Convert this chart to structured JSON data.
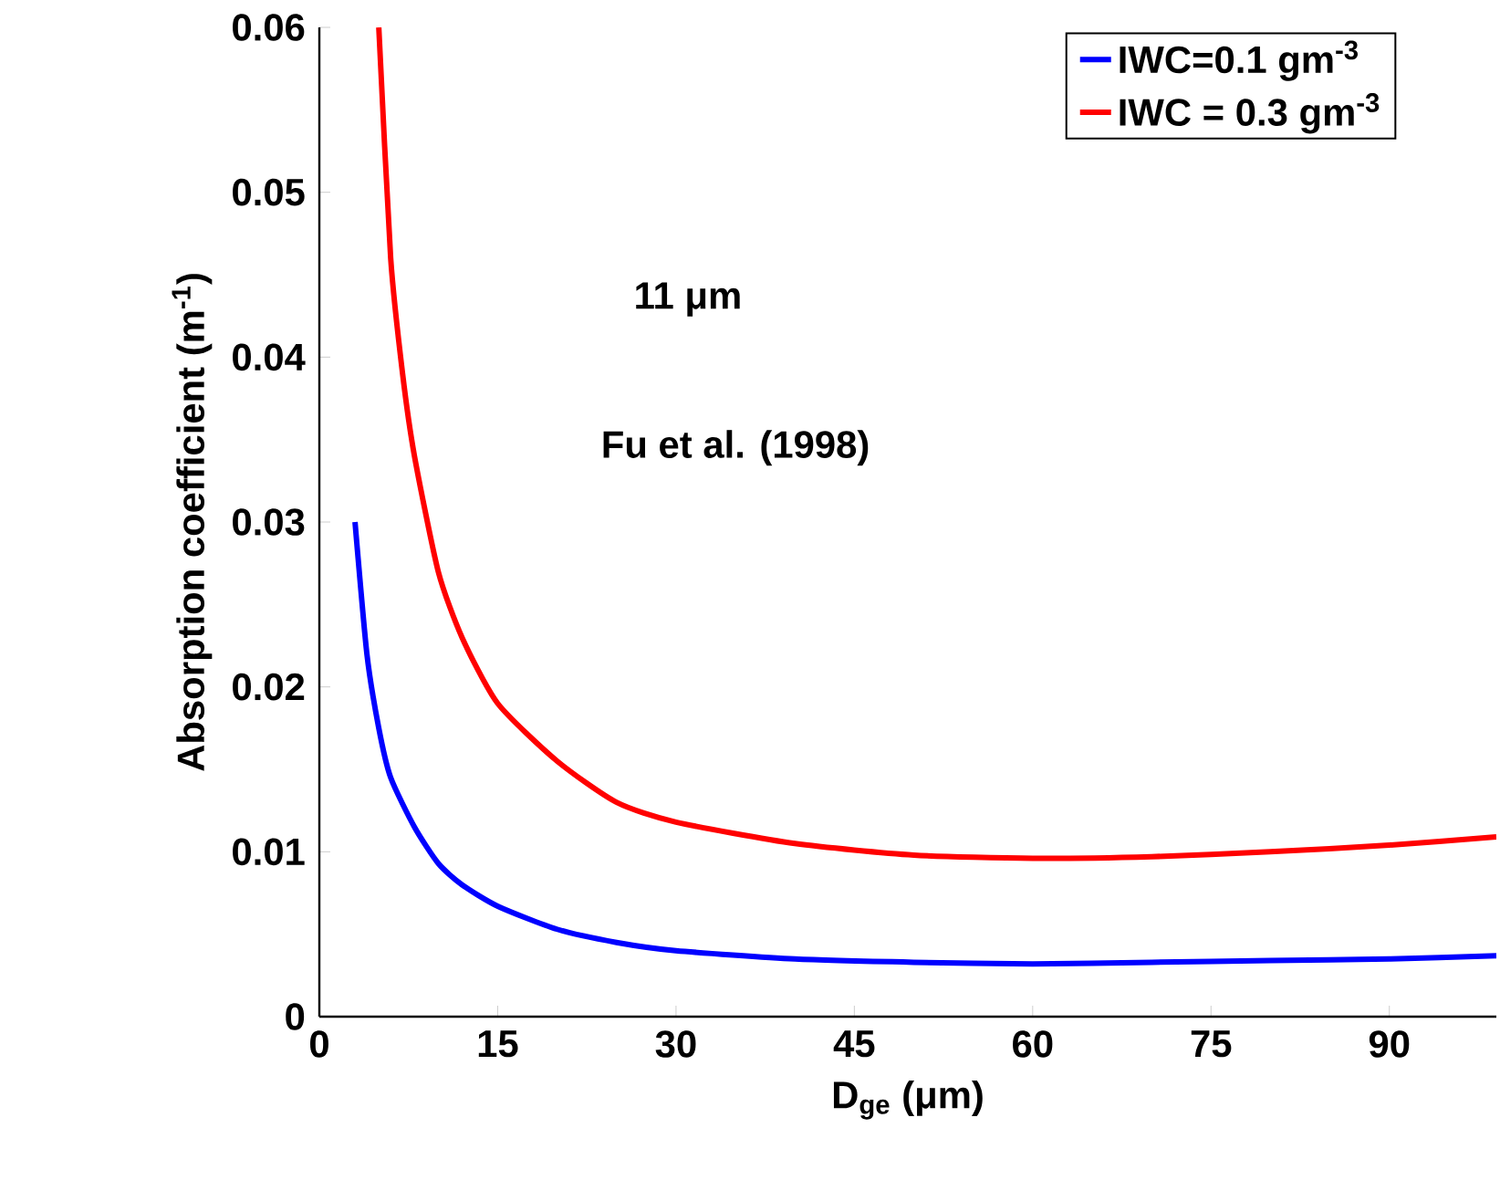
{
  "chart_data": {
    "type": "line",
    "xlabel": "D$_{ge}$ (μm)",
    "ylabel": "Absorption coefficient (m$^{-1}$)",
    "annotations": [
      "11 μm",
      "Fu et al. (1998)"
    ],
    "xlim": [
      0,
      99
    ],
    "xticks": [
      0,
      15,
      30,
      45,
      60,
      75,
      90
    ],
    "ylim": [
      0,
      0.06
    ],
    "yticks": [
      0,
      0.01,
      0.02,
      0.03,
      0.04,
      0.05,
      0.06
    ],
    "legend": "top right",
    "line_style": "solid",
    "marker": "none",
    "series": [
      {
        "name": "IWC=0.1 gm$^{-3}$",
        "color": "#0000ff",
        "x": [
          3,
          4,
          5,
          6,
          8,
          10,
          12,
          15,
          20,
          25,
          30,
          40,
          50,
          60,
          70,
          80,
          90,
          99
        ],
        "values": [
          0.03,
          0.022,
          0.0175,
          0.0145,
          0.0115,
          0.0093,
          0.008,
          0.0067,
          0.0053,
          0.0045,
          0.004,
          0.0035,
          0.0033,
          0.0032,
          0.0033,
          0.0034,
          0.0035,
          0.0037
        ]
      },
      {
        "name": "IWC = 0.3 gm$^{-3}$",
        "color": "#ff0000",
        "x": [
          5,
          6,
          7,
          8,
          10,
          12,
          15,
          20,
          25,
          30,
          40,
          50,
          60,
          70,
          80,
          90,
          99
        ],
        "values": [
          0.06,
          0.046,
          0.039,
          0.034,
          0.027,
          0.023,
          0.019,
          0.0155,
          0.013,
          0.0118,
          0.0105,
          0.0098,
          0.0096,
          0.0097,
          0.01,
          0.0104,
          0.0109
        ]
      }
    ]
  }
}
